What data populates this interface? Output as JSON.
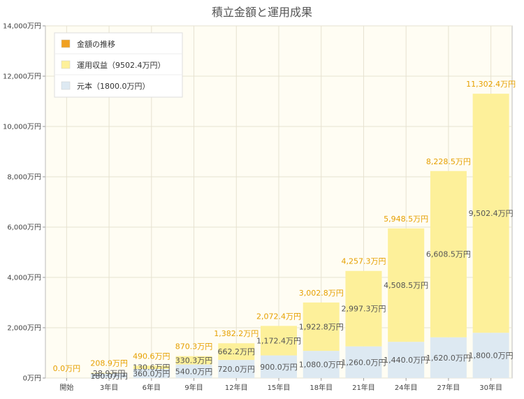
{
  "chart_data": {
    "type": "bar",
    "title": "積立金額と運用成果",
    "categories": [
      "開始",
      "3年目",
      "6年目",
      "9年目",
      "12年目",
      "15年目",
      "18年目",
      "21年目",
      "24年目",
      "27年目",
      "30年目"
    ],
    "series": [
      {
        "name": "元本（1800.0万円）",
        "values": [
          0,
          180.0,
          360.0,
          540.0,
          720.0,
          900.0,
          1080.0,
          1260.0,
          1440.0,
          1620.0,
          1800.0
        ],
        "labels": [
          "",
          "180.0万円",
          "360.0万円",
          "540.0万円",
          "720.0万円",
          "900.0万円",
          "1,080.0万円",
          "1,260.0万円",
          "1,440.0万円",
          "1,620.0万円",
          "1,800.0万円"
        ]
      },
      {
        "name": "運用収益（9502.4万円）",
        "values": [
          0,
          28.9,
          130.6,
          330.3,
          662.2,
          1172.4,
          1922.8,
          2997.3,
          4508.5,
          6608.5,
          9502.4
        ],
        "labels": [
          "",
          "28.9万円",
          "130.6万円",
          "330.3万円",
          "662.2万円",
          "1,172.4万円",
          "1,922.8万円",
          "2,997.3万円",
          "4,508.5万円",
          "6,608.5万円",
          "9,502.4万円"
        ]
      }
    ],
    "totals": [
      0.0,
      208.9,
      490.6,
      870.3,
      1382.2,
      2072.4,
      3002.8,
      4257.3,
      5948.5,
      8228.5,
      11302.4
    ],
    "total_labels": [
      "0.0万円",
      "208.9万円",
      "490.6万円",
      "870.3万円",
      "1,382.2万円",
      "2,072.4万円",
      "3,002.8万円",
      "4,257.3万円",
      "5,948.5万円",
      "8,228.5万円",
      "11,302.4万円"
    ],
    "legend": [
      {
        "label": "金額の推移",
        "color": "#f0a020"
      },
      {
        "label": "運用収益（9502.4万円）",
        "color": "#fdf09a"
      },
      {
        "label": "元本（1800.0万円）",
        "color": "#dde9f2"
      }
    ],
    "ylim": [
      0,
      14000
    ],
    "yticks": [
      0,
      2000,
      4000,
      6000,
      8000,
      10000,
      12000,
      14000
    ],
    "ytick_labels": [
      "0万円",
      "2,000万円",
      "4,000万円",
      "6,000万円",
      "8,000万円",
      "10,000万円",
      "12,000万円",
      "14,000万円"
    ],
    "grid": true,
    "legend_position": "top-left",
    "colors": {
      "principal": "#dde9f2",
      "returns": "#fdf09a",
      "total_label": "#e6a000",
      "plot_bg": "#fffdf3"
    }
  }
}
